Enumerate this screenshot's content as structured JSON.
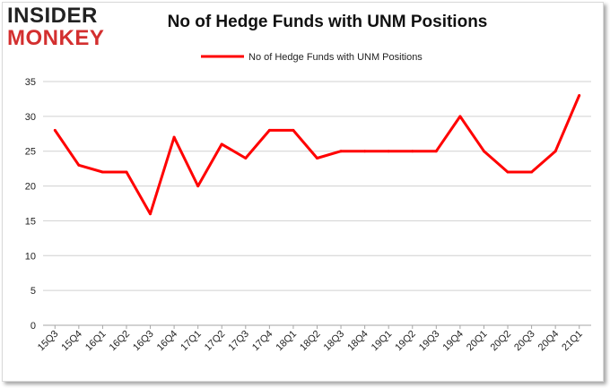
{
  "brand": {
    "top": "INSIDER",
    "bottom": "MONKEY"
  },
  "chart_data": {
    "type": "line",
    "title": "No of Hedge Funds with UNM Positions",
    "categories": [
      "15Q3",
      "15Q4",
      "16Q1",
      "16Q2",
      "16Q3",
      "16Q4",
      "17Q1",
      "17Q2",
      "17Q3",
      "17Q4",
      "18Q1",
      "18Q2",
      "18Q3",
      "18Q4",
      "19Q1",
      "19Q2",
      "19Q3",
      "19Q4",
      "20Q1",
      "20Q2",
      "20Q3",
      "20Q4",
      "21Q1"
    ],
    "series": [
      {
        "name": "No of Hedge Funds with UNM  Positions",
        "color": "#ff0000",
        "values": [
          28,
          23,
          22,
          22,
          16,
          27,
          20,
          26,
          24,
          28,
          28,
          24,
          25,
          25,
          25,
          25,
          25,
          30,
          25,
          22,
          22,
          25,
          33
        ]
      }
    ],
    "ylim": [
      0,
      35
    ],
    "yticks": [
      0,
      5,
      10,
      15,
      20,
      25,
      30,
      35
    ],
    "grid": true,
    "legend_position": "top-center"
  }
}
